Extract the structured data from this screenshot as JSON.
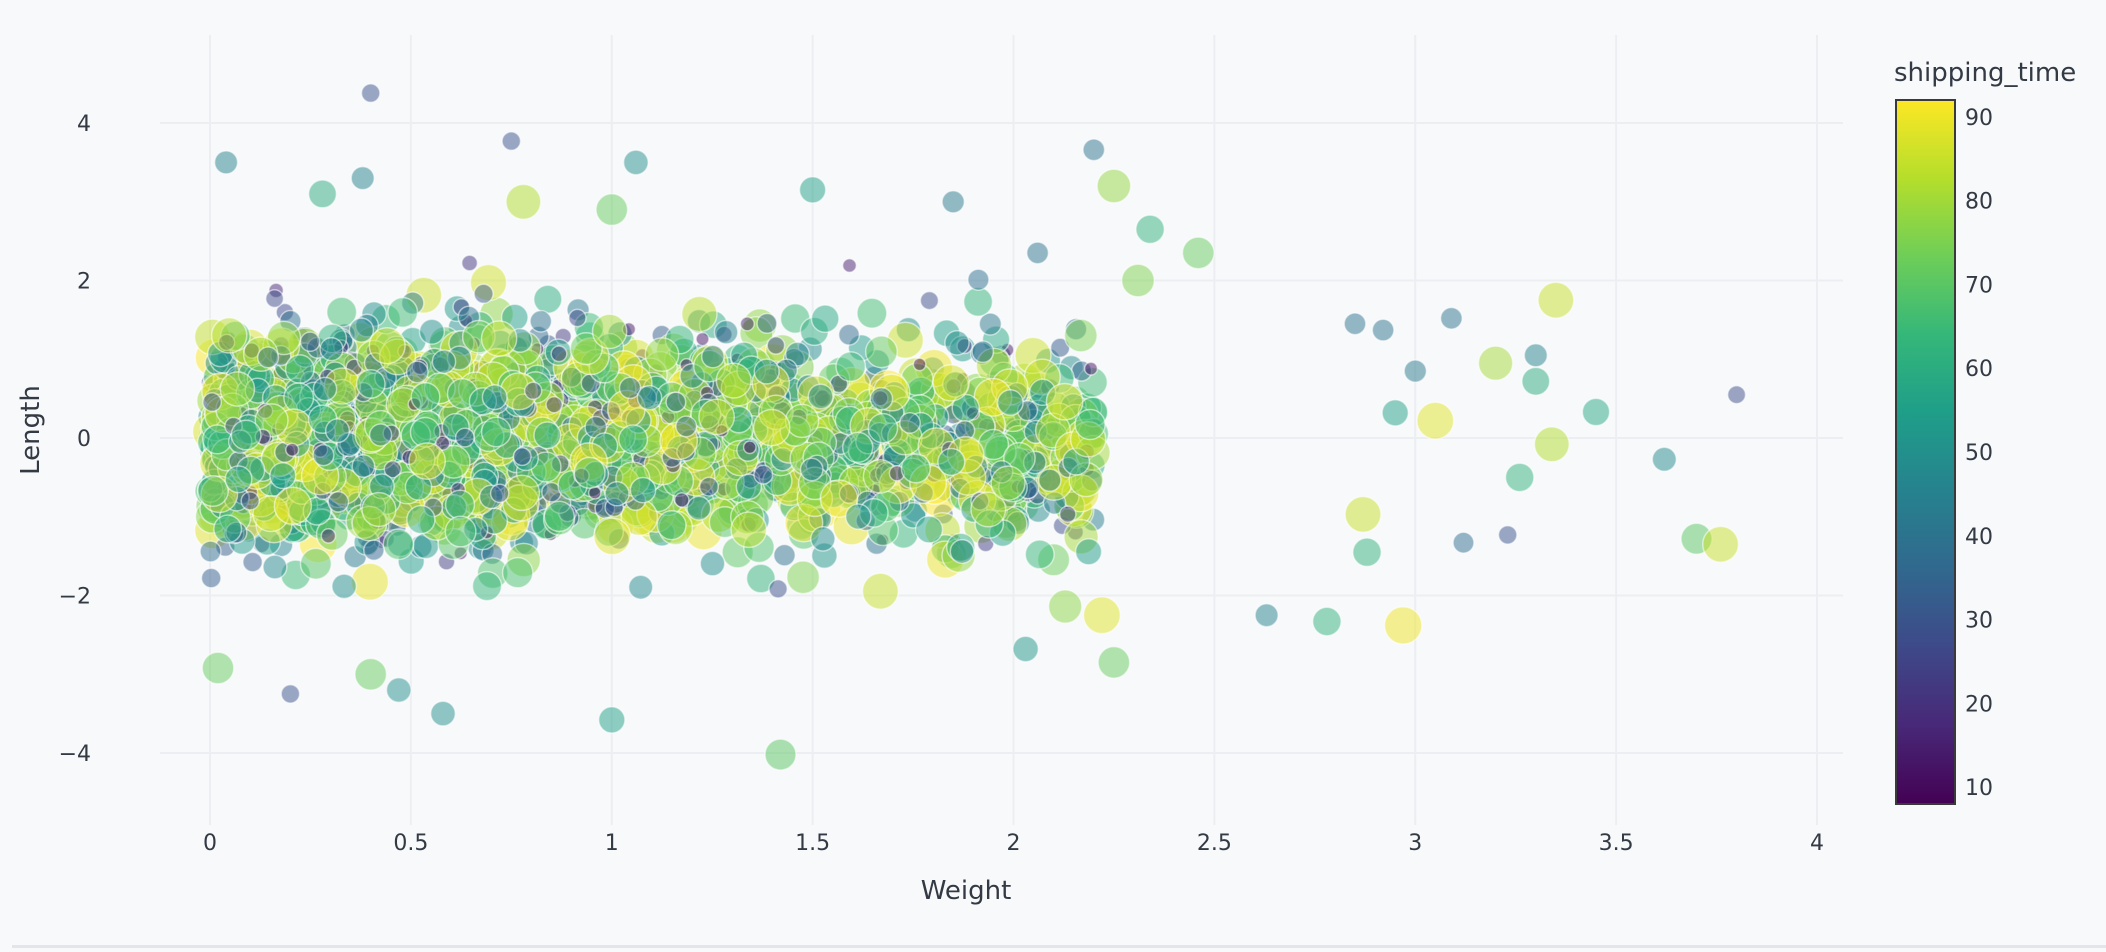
{
  "chart_data": {
    "type": "scatter",
    "title": "",
    "xlabel": "Weight",
    "ylabel": "Length",
    "xlim": [
      -0.4,
      4.1
    ],
    "ylim": [
      -4.8,
      5.0
    ],
    "x_ticks": [
      0,
      0.5,
      1,
      1.5,
      2,
      2.5,
      3,
      3.5,
      4
    ],
    "x_tick_labels": [
      "0",
      "0.5",
      "1",
      "1.5",
      "2",
      "2.5",
      "3",
      "3.5",
      "4"
    ],
    "y_ticks": [
      4,
      2,
      0,
      -2,
      -4
    ],
    "y_tick_labels": [
      "4",
      "2",
      "0",
      "−2",
      "−4"
    ],
    "grid": true,
    "marker": {
      "opacity": 0.5,
      "outline": "#ffffff",
      "size_encodes": "shipping_time"
    },
    "color_scale": {
      "name": "Viridis",
      "title": "shipping_time",
      "min": 8,
      "max": 92,
      "ticks": [
        90,
        80,
        70,
        60,
        50,
        40,
        30,
        20,
        10
      ],
      "stops": [
        "#440154",
        "#482878",
        "#3e4989",
        "#31688e",
        "#26828e",
        "#1f9e89",
        "#35b779",
        "#6ece58",
        "#b5de2b",
        "#fde725"
      ]
    },
    "cloud": {
      "n_points": 2600,
      "x_distribution": "half-normal-ish from 0, dense 0-2.2, tail to ~3.8",
      "y_distribution": "normal, mean 0, sd ~1.0, clipped ±2.6 in core",
      "value_range": [
        10,
        92
      ]
    },
    "outliers": [
      {
        "x": 0.4,
        "y": 4.38,
        "v": 30
      },
      {
        "x": 0.04,
        "y": 3.5,
        "v": 45
      },
      {
        "x": 0.38,
        "y": 3.3,
        "v": 45
      },
      {
        "x": 0.75,
        "y": 3.77,
        "v": 30
      },
      {
        "x": 0.28,
        "y": 3.1,
        "v": 60
      },
      {
        "x": 1.06,
        "y": 3.5,
        "v": 50
      },
      {
        "x": 1.5,
        "y": 3.15,
        "v": 55
      },
      {
        "x": 2.2,
        "y": 3.66,
        "v": 40
      },
      {
        "x": 2.25,
        "y": 3.2,
        "v": 78
      },
      {
        "x": 3.35,
        "y": 1.75,
        "v": 85
      },
      {
        "x": 3.45,
        "y": 0.33,
        "v": 58
      },
      {
        "x": 3.62,
        "y": -0.27,
        "v": 48
      },
      {
        "x": 3.8,
        "y": 0.55,
        "v": 28
      },
      {
        "x": 3.7,
        "y": -1.28,
        "v": 70
      },
      {
        "x": 3.76,
        "y": -1.35,
        "v": 85
      },
      {
        "x": 3.34,
        "y": -0.08,
        "v": 82
      },
      {
        "x": 3.12,
        "y": -1.33,
        "v": 38
      },
      {
        "x": 3.23,
        "y": -1.23,
        "v": 30
      },
      {
        "x": 3.05,
        "y": 0.22,
        "v": 88
      },
      {
        "x": 3.2,
        "y": 0.95,
        "v": 80
      },
      {
        "x": 3.3,
        "y": 0.72,
        "v": 60
      },
      {
        "x": 3.26,
        "y": -0.5,
        "v": 62
      },
      {
        "x": 3.3,
        "y": 1.05,
        "v": 45
      },
      {
        "x": 2.97,
        "y": -2.38,
        "v": 90
      },
      {
        "x": 2.78,
        "y": -2.33,
        "v": 62
      },
      {
        "x": 2.63,
        "y": -2.25,
        "v": 45
      },
      {
        "x": 2.25,
        "y": -2.85,
        "v": 72
      },
      {
        "x": 2.22,
        "y": -2.25,
        "v": 88
      },
      {
        "x": 2.03,
        "y": -2.68,
        "v": 52
      },
      {
        "x": 1.42,
        "y": -4.02,
        "v": 70
      },
      {
        "x": 1.0,
        "y": -3.58,
        "v": 55
      },
      {
        "x": 0.58,
        "y": -3.5,
        "v": 50
      },
      {
        "x": 0.2,
        "y": -3.25,
        "v": 30
      },
      {
        "x": 0.47,
        "y": -3.2,
        "v": 50
      },
      {
        "x": 0.4,
        "y": -3.0,
        "v": 72
      },
      {
        "x": 0.02,
        "y": -2.92,
        "v": 72
      },
      {
        "x": 2.88,
        "y": -1.45,
        "v": 62
      },
      {
        "x": 2.87,
        "y": -0.97,
        "v": 85
      },
      {
        "x": 2.92,
        "y": 1.37,
        "v": 40
      },
      {
        "x": 2.85,
        "y": 1.45,
        "v": 40
      },
      {
        "x": 3.09,
        "y": 1.52,
        "v": 40
      },
      {
        "x": 3.0,
        "y": 0.85,
        "v": 42
      },
      {
        "x": 2.95,
        "y": 0.32,
        "v": 55
      },
      {
        "x": 2.34,
        "y": 2.65,
        "v": 62
      },
      {
        "x": 2.31,
        "y": 2.0,
        "v": 75
      },
      {
        "x": 2.46,
        "y": 2.35,
        "v": 72
      },
      {
        "x": 2.06,
        "y": 2.35,
        "v": 40
      },
      {
        "x": 1.85,
        "y": 3.0,
        "v": 42
      },
      {
        "x": 1.0,
        "y": 2.9,
        "v": 72
      },
      {
        "x": 0.78,
        "y": 3.0,
        "v": 82
      }
    ]
  }
}
